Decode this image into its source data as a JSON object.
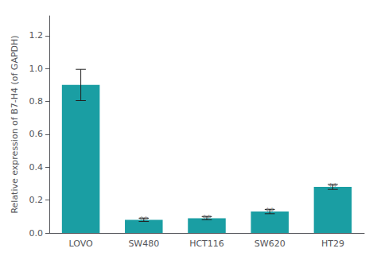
{
  "chart_data": {
    "type": "bar",
    "categories": [
      "LOVO",
      "SW480",
      "HCT116",
      "SW620",
      "HT29"
    ],
    "values": [
      0.9,
      0.08,
      0.09,
      0.13,
      0.28
    ],
    "errors": [
      0.095,
      0.01,
      0.01,
      0.013,
      0.015
    ],
    "color": "#1A9EA3",
    "ylabel": "Relative expression of B7-H4 (of GAPDH)",
    "ylim": [
      0,
      1.32
    ],
    "yticks": [
      {
        "value": 0.0,
        "label": "0.0"
      },
      0.2,
      0.4,
      0.6,
      0.8,
      {
        "value": 1.0,
        "label": "1.0"
      },
      1.2
    ],
    "annotations": [
      {
        "x": "SW480",
        "text": "**"
      },
      {
        "x": "HCT116",
        "text": "**"
      },
      {
        "x": "SW620",
        "text": "**"
      },
      {
        "x": "HT29",
        "text": "**"
      }
    ],
    "grid": false
  }
}
